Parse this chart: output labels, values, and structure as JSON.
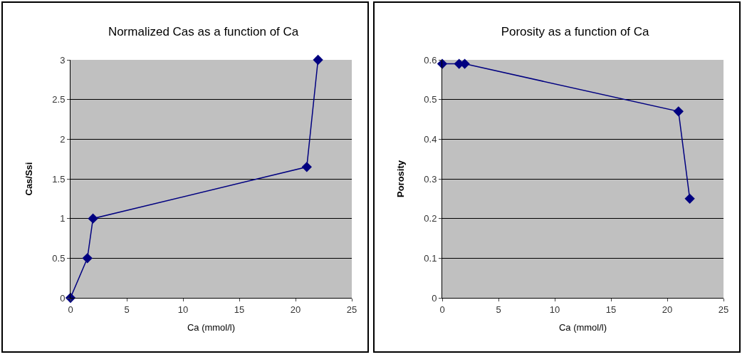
{
  "chart_data": [
    {
      "type": "line",
      "title": "Normalized Cas as a function of Ca",
      "xlabel": "Ca (mmol/l)",
      "ylabel": "Cas/Ssi",
      "x": [
        0,
        1.5,
        2,
        21,
        22
      ],
      "series": [
        {
          "color": "#000080",
          "values": [
            0,
            0.5,
            1,
            1.65,
            3
          ]
        }
      ],
      "xlim": [
        0,
        25
      ],
      "xticks": [
        0,
        5,
        10,
        15,
        20,
        25
      ],
      "ylim": [
        0,
        3
      ],
      "yticks": [
        0,
        0.5,
        1,
        1.5,
        2,
        2.5,
        3
      ],
      "grid": "y",
      "marker": "diamond",
      "line_style": "solid"
    },
    {
      "type": "line",
      "title": "Porosity as a function of Ca",
      "xlabel": "Ca (mmol/l)",
      "ylabel": "Porosity",
      "x": [
        0,
        1.5,
        2,
        21,
        22
      ],
      "series": [
        {
          "color": "#000080",
          "values": [
            0.59,
            0.59,
            0.59,
            0.47,
            0.25
          ]
        }
      ],
      "xlim": [
        0,
        25
      ],
      "xticks": [
        0,
        5,
        10,
        15,
        20,
        25
      ],
      "ylim": [
        0,
        0.6
      ],
      "yticks": [
        0,
        0.1,
        0.2,
        0.3,
        0.4,
        0.5,
        0.6
      ],
      "grid": "y",
      "marker": "diamond",
      "line_style": "solid"
    }
  ]
}
